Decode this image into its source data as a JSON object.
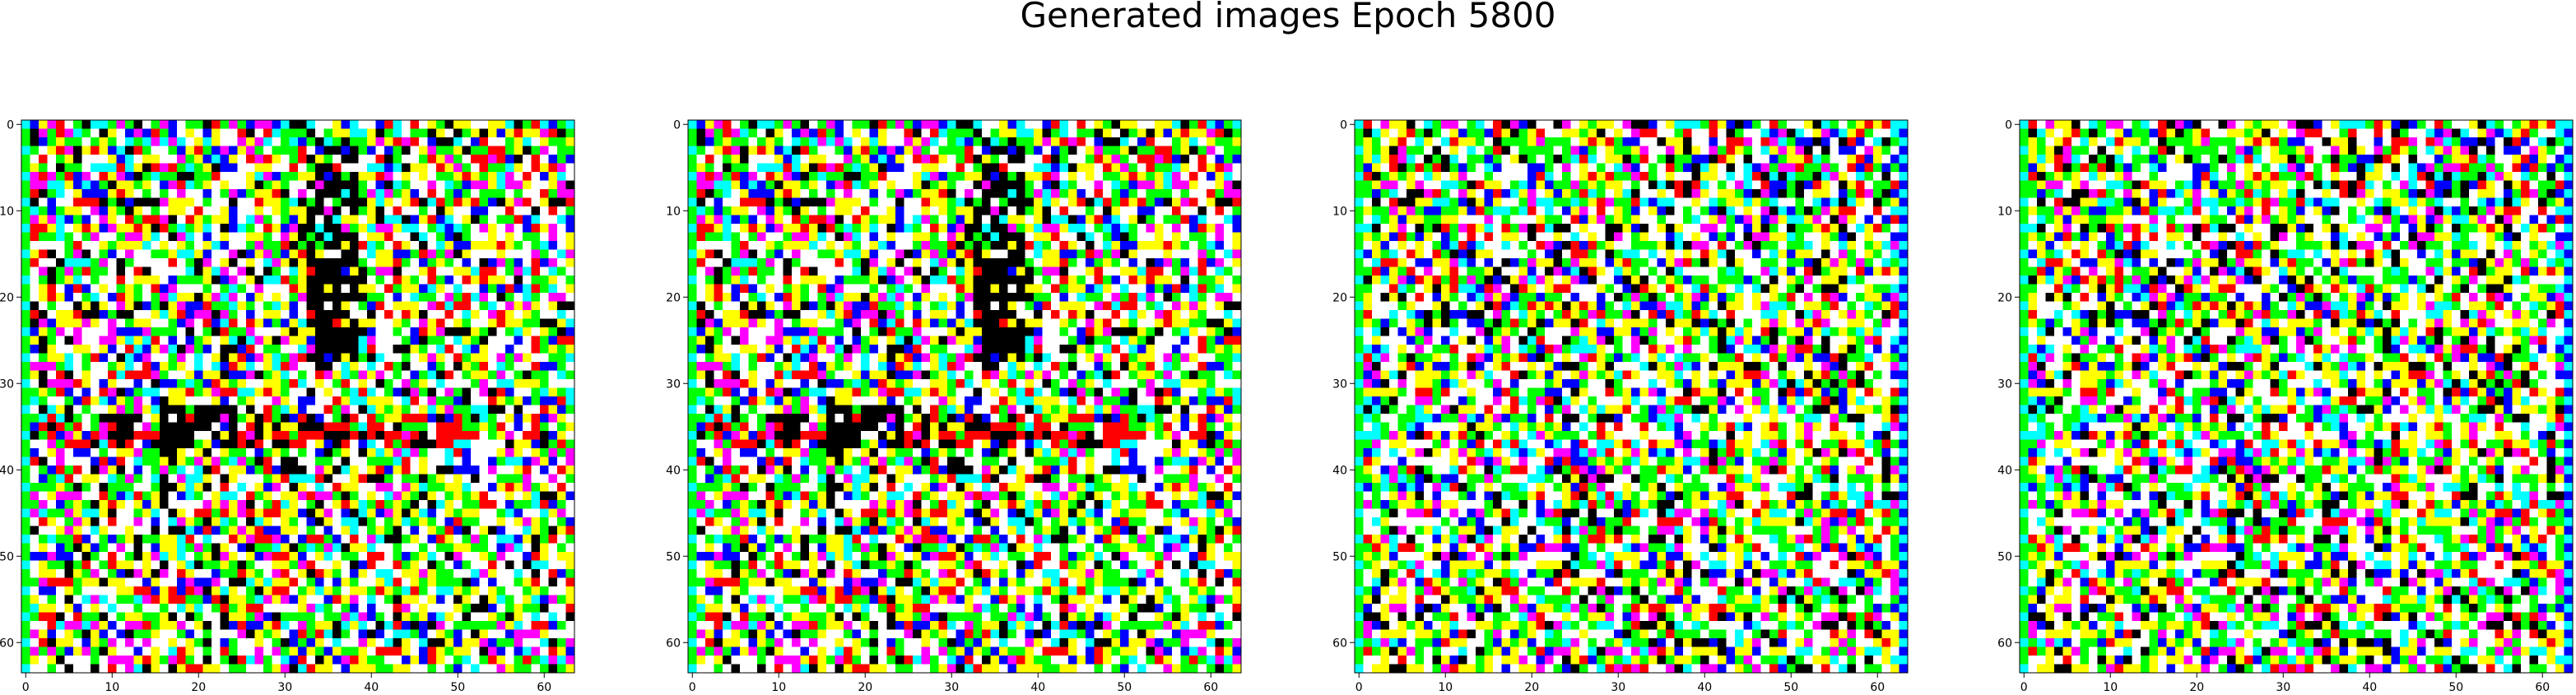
{
  "chart_data": {
    "type": "heatmap",
    "title": "Generated images Epoch 5800",
    "panels": [
      {
        "xlabel": "",
        "ylabel": "",
        "xticks": [
          0,
          10,
          20,
          30,
          40,
          50,
          60
        ],
        "yticks": [
          0,
          10,
          20,
          30,
          40,
          50,
          60
        ],
        "xlim": [
          -0.5,
          63.5
        ],
        "ylim": [
          63.5,
          -0.5
        ],
        "grid_size": 64,
        "structure": "blob-features"
      },
      {
        "xlabel": "",
        "ylabel": "",
        "xticks": [
          0,
          10,
          20,
          30,
          40,
          50,
          60
        ],
        "yticks": [
          0,
          10,
          20,
          30,
          40,
          50,
          60
        ],
        "xlim": [
          -0.5,
          63.5
        ],
        "ylim": [
          63.5,
          -0.5
        ],
        "grid_size": 64,
        "structure": "blob-features"
      },
      {
        "xlabel": "",
        "ylabel": "",
        "xticks": [
          0,
          10,
          20,
          30,
          40,
          50,
          60
        ],
        "yticks": [
          0,
          10,
          20,
          30,
          40,
          50,
          60
        ],
        "xlim": [
          -0.5,
          63.5
        ],
        "ylim": [
          63.5,
          -0.5
        ],
        "grid_size": 64,
        "structure": "noise"
      },
      {
        "xlabel": "",
        "ylabel": "",
        "xticks": [
          0,
          10,
          20,
          30,
          40,
          50,
          60
        ],
        "yticks": [
          0,
          10,
          20,
          30,
          40,
          50,
          60
        ],
        "xlim": [
          -0.5,
          63.5
        ],
        "ylim": [
          63.5,
          -0.5
        ],
        "grid_size": 64,
        "structure": "noise"
      }
    ],
    "palette": [
      "#ffffff",
      "#ffffff",
      "#ffff00",
      "#00ff00",
      "#00ffff",
      "#ff00ff",
      "#0000ff",
      "#ff0000",
      "#000000",
      "#ffffff",
      "#ffff00",
      "#00ff00"
    ],
    "legend": "none",
    "grid": false
  }
}
